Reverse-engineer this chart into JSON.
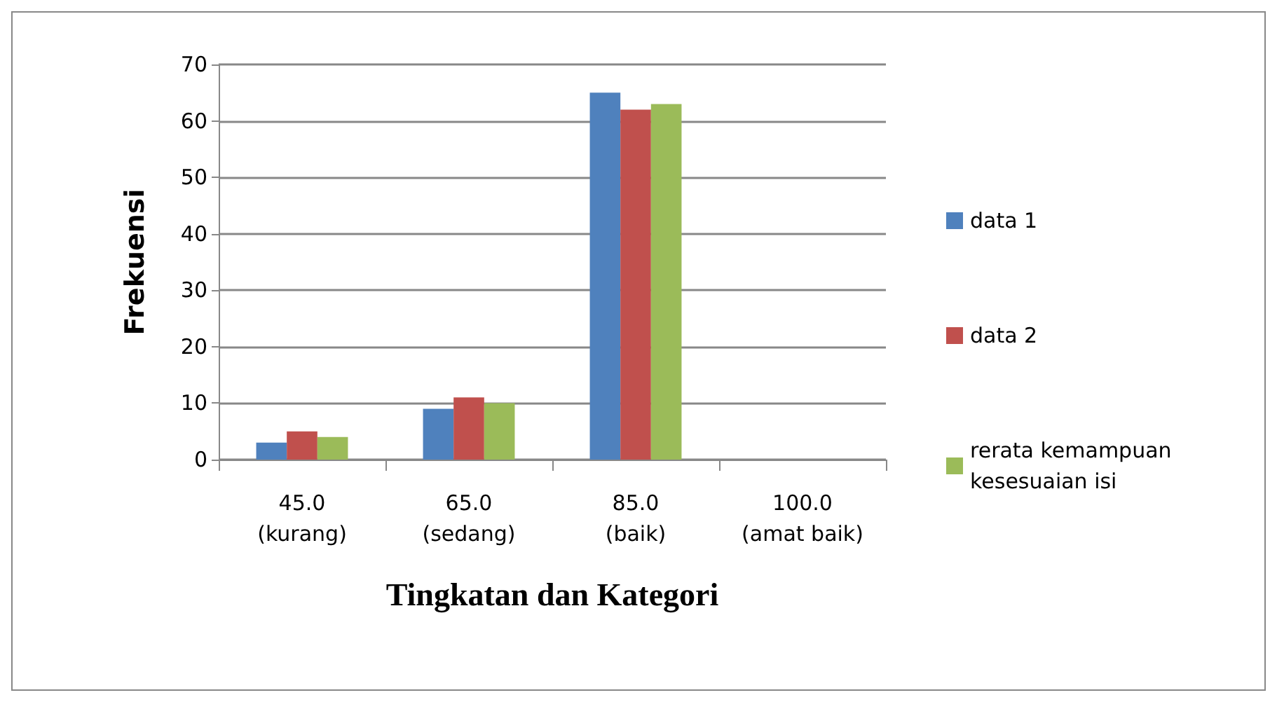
{
  "chart_data": {
    "type": "bar",
    "xlabel": "Tingkatan dan Kategori",
    "ylabel": "Frekuensi",
    "categories": [
      "45.0\n(kurang)",
      "65.0\n(sedang)",
      "85.0\n(baik)",
      "100.0\n(amat baik)"
    ],
    "series": [
      {
        "name": "data 1",
        "color": "#4f81bd",
        "values": [
          3,
          9,
          65,
          0
        ]
      },
      {
        "name": "data 2",
        "color": "#c0504d",
        "values": [
          5,
          11,
          62,
          0
        ]
      },
      {
        "name": "rerata kemampuan kesesuaian isi",
        "color": "#9bbb59",
        "values": [
          4,
          10,
          63,
          0
        ]
      }
    ],
    "ylim": [
      0,
      70
    ],
    "yticks": [
      0,
      10,
      20,
      30,
      40,
      50,
      60,
      70
    ],
    "grid": "y",
    "legend": "right"
  }
}
